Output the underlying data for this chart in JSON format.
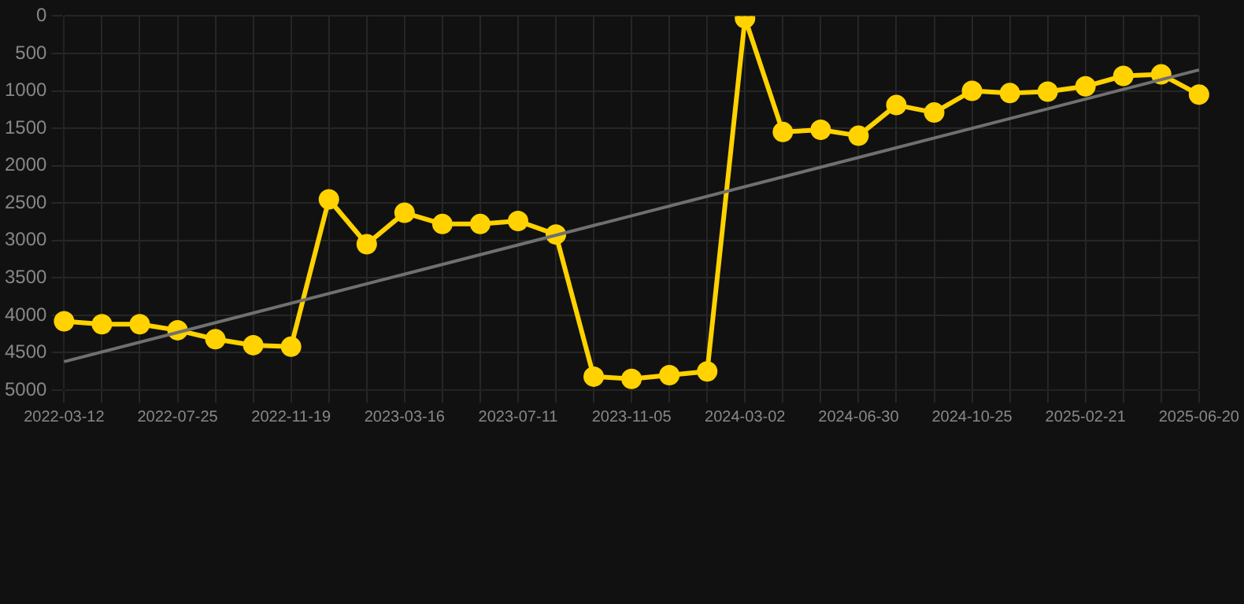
{
  "chart_data": {
    "type": "line",
    "categories": [
      "2022-03-12",
      null,
      null,
      "2022-07-25",
      null,
      null,
      "2022-11-19",
      null,
      null,
      "2023-03-16",
      null,
      null,
      "2023-07-11",
      null,
      null,
      "2023-11-05",
      null,
      null,
      "2024-03-02",
      null,
      null,
      "2024-06-30",
      null,
      null,
      "2024-10-25",
      null,
      null,
      "2025-02-21",
      null,
      null,
      "2025-06-20"
    ],
    "series": [
      {
        "color": "#ffd200",
        "marker": "circle",
        "values": [
          4080,
          4120,
          4120,
          4200,
          4320,
          4400,
          4420,
          2450,
          3050,
          2630,
          2780,
          2780,
          2740,
          2920,
          4820,
          4850,
          4800,
          4750,
          30,
          1550,
          1520,
          1600,
          1190,
          1290,
          1000,
          1030,
          1010,
          940,
          800,
          780,
          1050
        ]
      },
      {
        "type": "line",
        "color": "#707070",
        "marker": "none",
        "values": [
          4620,
          null,
          null,
          null,
          null,
          null,
          null,
          null,
          null,
          null,
          null,
          null,
          null,
          null,
          null,
          null,
          null,
          null,
          null,
          null,
          null,
          null,
          null,
          null,
          null,
          null,
          null,
          null,
          null,
          null,
          720
        ]
      }
    ],
    "ylim": [
      5000,
      0
    ],
    "yticks": [
      0,
      500,
      1000,
      1500,
      2000,
      2500,
      3000,
      3500,
      4000,
      4500,
      5000
    ],
    "grid": true,
    "legend": false
  }
}
